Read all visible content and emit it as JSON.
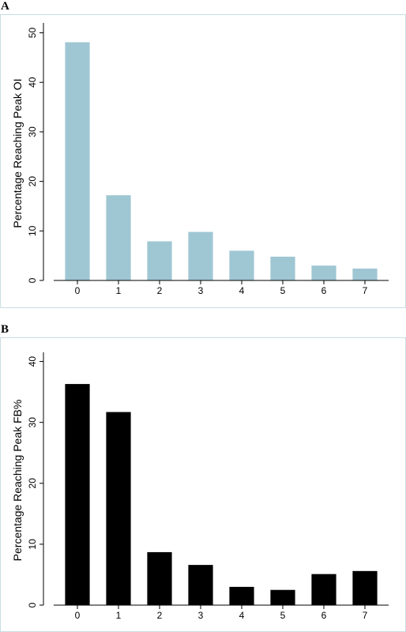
{
  "chart_data": [
    {
      "panel": "A",
      "type": "bar",
      "categories": [
        "0",
        "1",
        "2",
        "3",
        "4",
        "5",
        "6",
        "7"
      ],
      "values": [
        48.1,
        17.2,
        7.9,
        9.8,
        6.0,
        4.8,
        3.0,
        2.4
      ],
      "yticks": [
        0,
        10,
        20,
        30,
        40,
        50
      ],
      "ylim": [
        0,
        52
      ],
      "ylabel": "Percentage Reaching Peak OI",
      "xlabel": "",
      "bar_color": "#9fc6d3",
      "grid": false
    },
    {
      "panel": "B",
      "type": "bar",
      "categories": [
        "0",
        "1",
        "2",
        "3",
        "4",
        "5",
        "6",
        "7"
      ],
      "values": [
        36.3,
        31.7,
        8.7,
        6.6,
        3.0,
        2.5,
        5.1,
        5.6
      ],
      "yticks": [
        0,
        10,
        20,
        30,
        40
      ],
      "ylim": [
        0,
        41.5
      ],
      "ylabel": "Percentage Reaching Peak FB%",
      "xlabel": "",
      "bar_color": "#000000",
      "grid": false
    }
  ]
}
